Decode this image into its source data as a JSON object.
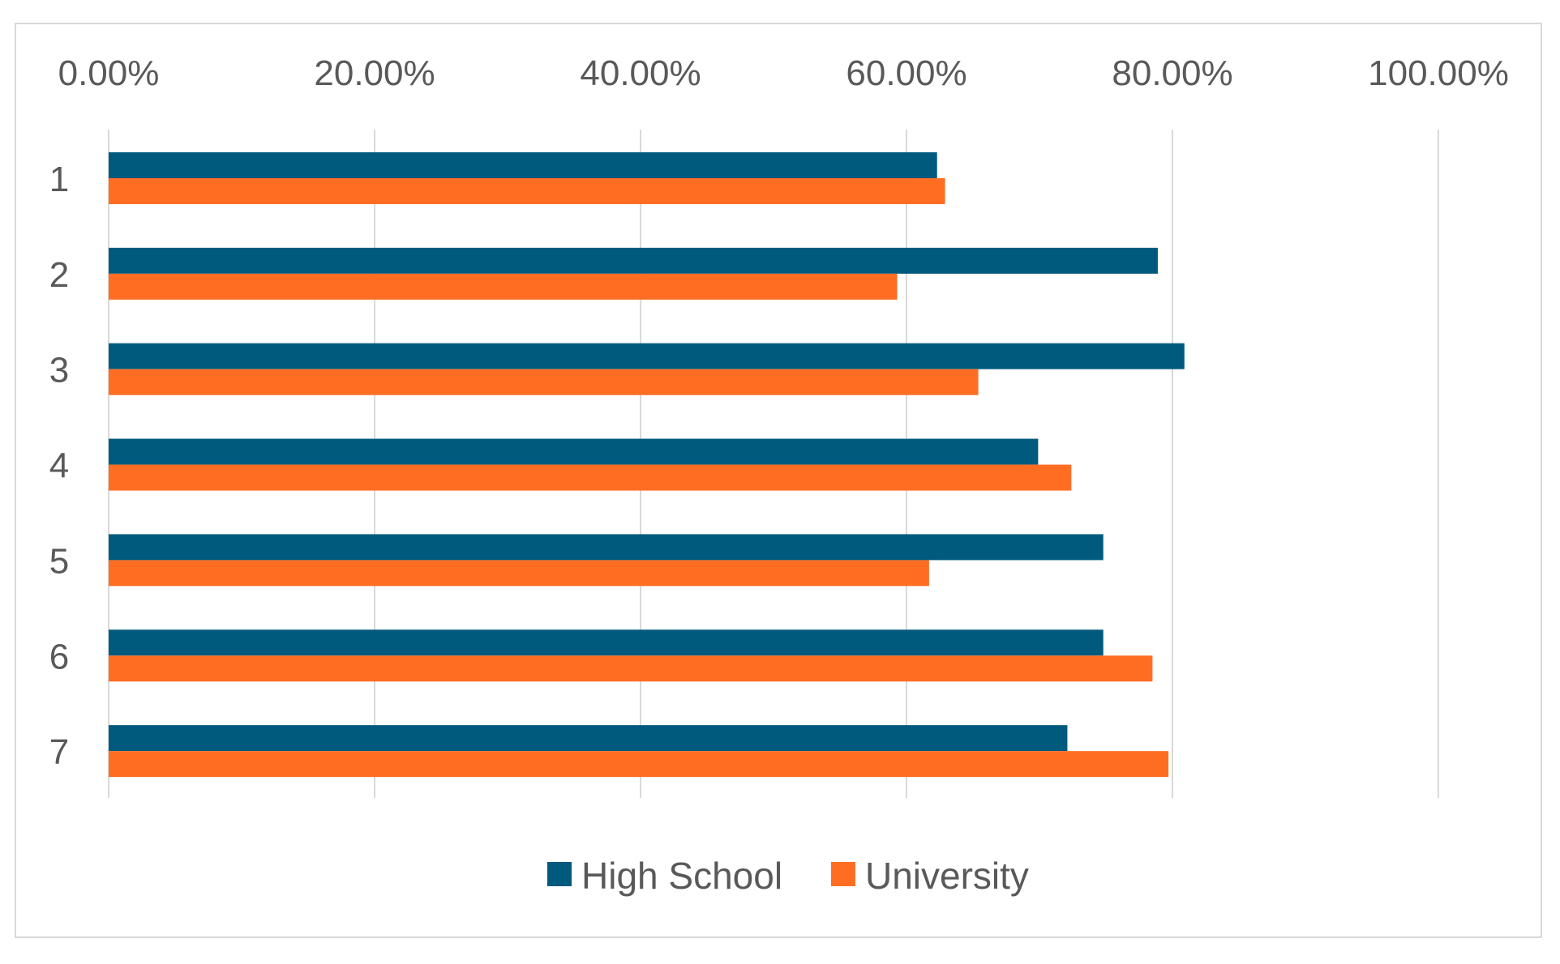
{
  "chart_data": {
    "type": "bar",
    "orientation": "horizontal",
    "title": "",
    "xlabel": "",
    "ylabel": "",
    "categories": [
      "1",
      "2",
      "3",
      "4",
      "5",
      "6",
      "7"
    ],
    "series": [
      {
        "name": "High School",
        "color": "#005a7e",
        "values": [
          62.3,
          78.9,
          80.9,
          69.9,
          74.8,
          74.8,
          72.1
        ]
      },
      {
        "name": "University",
        "color": "#ff6d23",
        "values": [
          62.9,
          59.3,
          65.4,
          72.4,
          61.7,
          78.5,
          79.7
        ]
      }
    ],
    "xlim": [
      0,
      100
    ],
    "xticks": [
      "0.00%",
      "20.00%",
      "40.00%",
      "60.00%",
      "80.00%",
      "100.00%"
    ],
    "grid": true,
    "legend": "bottom"
  }
}
